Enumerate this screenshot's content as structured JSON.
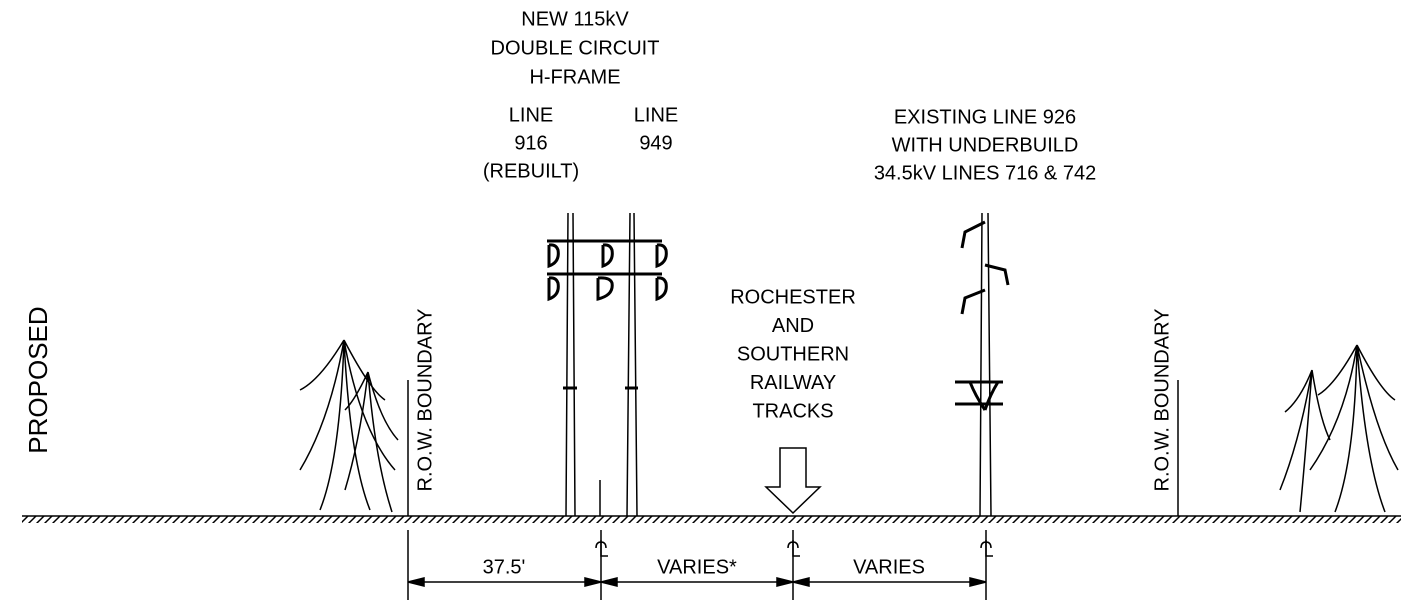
{
  "section_label": "PROPOSED",
  "new_structure": {
    "title_lines": [
      "NEW 115kV",
      "DOUBLE CIRCUIT",
      "H-FRAME"
    ],
    "line_916": [
      "LINE",
      "916",
      "(REBUILT)"
    ],
    "line_949": [
      "LINE",
      "949"
    ]
  },
  "existing_structure": {
    "lines": [
      "EXISTING LINE 926",
      "WITH UNDERBUILD",
      "34.5kV LINES 716 & 742"
    ]
  },
  "railway": {
    "lines": [
      "ROCHESTER",
      "AND",
      "SOUTHERN",
      "RAILWAY",
      "TRACKS"
    ]
  },
  "boundaries": [
    "R.O.W. BOUNDARY",
    "R.O.W. BOUNDARY"
  ],
  "dimensions": [
    "37.5'",
    "VARIES*",
    "VARIES"
  ]
}
